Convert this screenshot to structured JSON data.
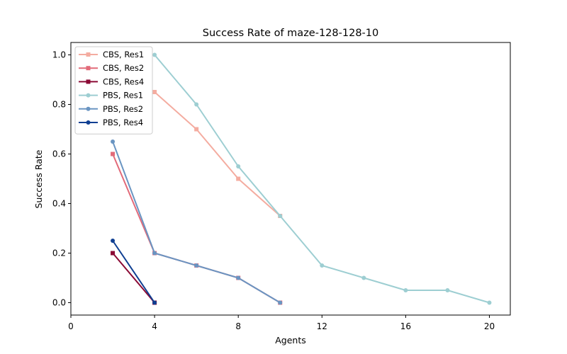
{
  "chart_data": {
    "type": "line",
    "title": "Success Rate of maze-128-128-10",
    "xlabel": "Agents",
    "ylabel": "Success Rate",
    "xlim": [
      0,
      21
    ],
    "ylim": [
      -0.05,
      1.05
    ],
    "xticks": [
      0,
      4,
      8,
      12,
      16,
      20
    ],
    "yticks": [
      0.0,
      0.2,
      0.4,
      0.6,
      0.8,
      1.0
    ],
    "xtick_labels": [
      "0",
      "4",
      "8",
      "12",
      "16",
      "20"
    ],
    "ytick_labels": [
      "0.0",
      "0.2",
      "0.4",
      "0.6",
      "0.8",
      "1.0"
    ],
    "grid": false,
    "legend_position": "top-left",
    "series": [
      {
        "name": "CBS, Res1",
        "color": "#f4aca0",
        "marker": "square",
        "x": [
          4,
          6,
          8,
          10
        ],
        "y": [
          0.85,
          0.7,
          0.5,
          0.35
        ]
      },
      {
        "name": "CBS, Res2",
        "color": "#e26a79",
        "marker": "square",
        "x": [
          2,
          4,
          6,
          8,
          10
        ],
        "y": [
          0.6,
          0.2,
          0.15,
          0.1,
          0.0
        ]
      },
      {
        "name": "CBS, Res4",
        "color": "#8b0a35",
        "marker": "square",
        "x": [
          2,
          4
        ],
        "y": [
          0.2,
          0.0
        ]
      },
      {
        "name": "PBS, Res1",
        "color": "#9dced2",
        "marker": "circle",
        "x": [
          4,
          6,
          8,
          10,
          12,
          14,
          16,
          18,
          20
        ],
        "y": [
          1.0,
          0.8,
          0.55,
          0.35,
          0.15,
          0.1,
          0.05,
          0.05,
          0.0
        ]
      },
      {
        "name": "PBS, Res2",
        "color": "#6a95c2",
        "marker": "circle",
        "x": [
          2,
          4,
          6,
          8,
          10
        ],
        "y": [
          0.65,
          0.2,
          0.15,
          0.1,
          0.0
        ]
      },
      {
        "name": "PBS, Res4",
        "color": "#0f3f92",
        "marker": "circle",
        "x": [
          2,
          4
        ],
        "y": [
          0.25,
          0.0
        ]
      }
    ]
  }
}
